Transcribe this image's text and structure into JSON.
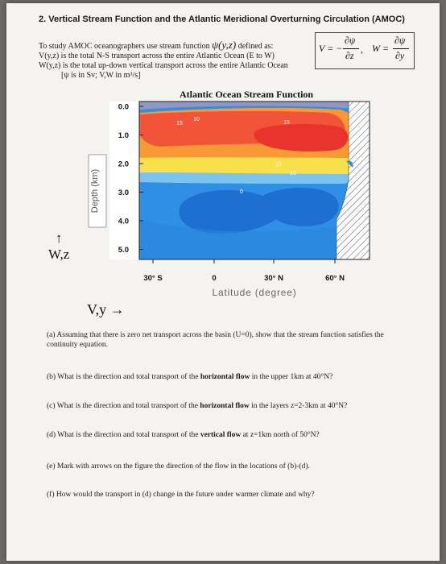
{
  "problem": {
    "title": "2. Vertical Stream Function and the Atlantic Meridional Overturning Circulation (AMOC)",
    "intro_line1": "To study AMOC oceanographers use stream function",
    "psi_symbol": "ψ(y,z)",
    "defined_as": "defined as:",
    "intro_line2": "V(y,z) is the total N-S transport across the entire Atlantic Ocean (E to W)",
    "intro_line3": "W(y,z) is the total up-down vertical transport across the entire Atlantic Ocean",
    "units_line": "[ψ is in Sv; V,W in m³/s]"
  },
  "formula": {
    "v_lhs": "V = −",
    "v_num": "∂ψ",
    "v_den": "∂z",
    "comma": ",",
    "w_lhs": "W =",
    "w_num": "∂ψ",
    "w_den": "∂y"
  },
  "axes_labels": {
    "wz_arrow": "↑",
    "wz": "W,z",
    "vy": "V,y →"
  },
  "chart_data": {
    "type": "heatmap",
    "title": "Atlantic Ocean Stream Function",
    "xlabel": "Latitude (degree)",
    "ylabel": "Depth (km)",
    "x_ticks": [
      "30° S",
      "0",
      "30° N",
      "60° N"
    ],
    "y_ticks": [
      "0.0",
      "1.0",
      "2.0",
      "3.0",
      "4.0",
      "5.0"
    ],
    "contour_labels": [
      "15",
      "10",
      "15",
      "15",
      "10",
      "0"
    ],
    "colors": {
      "deep_red": "#e8342c",
      "red": "#f2543a",
      "orange": "#f79a36",
      "yellow": "#f8e04a",
      "light_blue": "#7cc3ee",
      "blue": "#2f8fe4",
      "dark_blue": "#1f6fd2",
      "land": "#ffffff"
    }
  },
  "questions": [
    "(a) Assuming that there is zero net transport across the basin (U=0), show that the stream function satisfies the continuity equation.",
    "(b) What is the direction and total transport of the horizontal flow in the upper 1km at 40°N?",
    "(c) What is the direction and total transport of the horizontal flow in the layers z=2-3km at 40°N?",
    "(d) What is the direction and total transport of the vertical flow at z=1km north of 50°N?",
    "(e) Mark with arrows on the figure the direction of the flow in the locations of (b)-(d).",
    "(f) How would the transport in (d) change in the future under warmer climate and why?"
  ]
}
